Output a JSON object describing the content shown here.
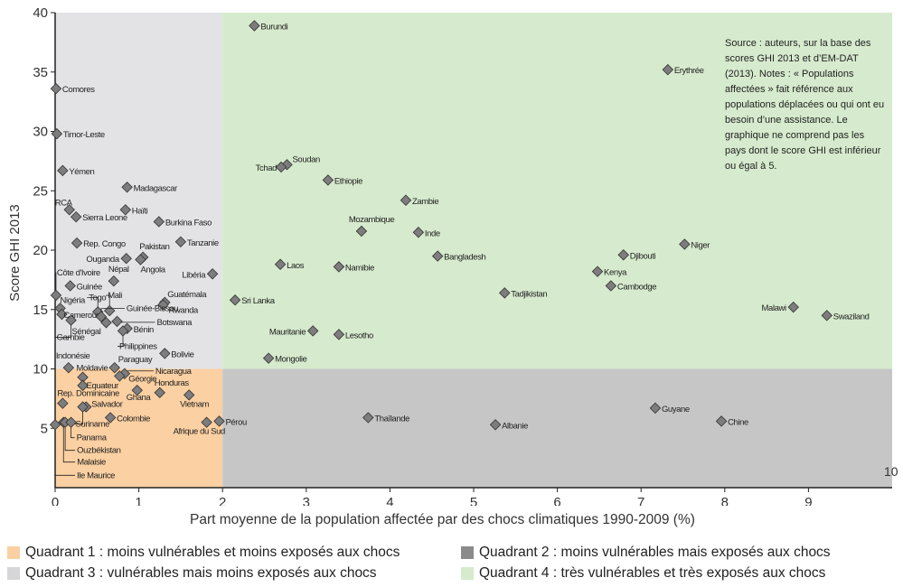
{
  "chart_data": {
    "type": "scatter",
    "xlabel": "Part moyenne de la population affectée par des chocs climatiques 1990-2009 (%)",
    "ylabel": "Score GHI 2013",
    "xlim": [
      0,
      10
    ],
    "ylim": [
      0,
      40
    ],
    "x_ticks": [
      0,
      1,
      2,
      3,
      4,
      5,
      6,
      7,
      8,
      9
    ],
    "y_ticks": [
      5,
      10,
      15,
      20,
      25,
      30,
      35,
      40
    ],
    "corner_tick": "10",
    "quadrant_split": {
      "x": 2,
      "y": 10
    },
    "colors": {
      "q1": "#fbd0a2",
      "q2": "#c6c6c6",
      "q3": "#e3e3e5",
      "q4": "#d6eacd",
      "marker": "#7d7d7d",
      "marker_stroke": "#333333"
    },
    "points": [
      {
        "name": "Burundi",
        "x": 2.38,
        "y": 38.9
      },
      {
        "name": "Erythrée",
        "x": 7.32,
        "y": 35.2
      },
      {
        "name": "Comores",
        "x": 0.01,
        "y": 33.6
      },
      {
        "name": "Timor-Leste",
        "x": 0.02,
        "y": 29.8
      },
      {
        "name": "Yémen",
        "x": 0.09,
        "y": 26.7
      },
      {
        "name": "Soudan",
        "x": 2.77,
        "y": 27.2
      },
      {
        "name": "Tchad",
        "x": 2.7,
        "y": 27.0
      },
      {
        "name": "Madagascar",
        "x": 0.86,
        "y": 25.3
      },
      {
        "name": "Ethiopie",
        "x": 3.26,
        "y": 25.9
      },
      {
        "name": "Zambie",
        "x": 4.19,
        "y": 24.2
      },
      {
        "name": "RCA",
        "x": 0.17,
        "y": 23.4
      },
      {
        "name": "Sierra Leone",
        "x": 0.25,
        "y": 22.8
      },
      {
        "name": "Haïti",
        "x": 0.84,
        "y": 23.4
      },
      {
        "name": "Burkina Faso",
        "x": 1.24,
        "y": 22.4
      },
      {
        "name": "Mozambique",
        "x": 3.66,
        "y": 21.6
      },
      {
        "name": "Inde",
        "x": 4.34,
        "y": 21.5
      },
      {
        "name": "Rep. Congo",
        "x": 0.26,
        "y": 20.6
      },
      {
        "name": "Tanzanie",
        "x": 1.5,
        "y": 20.7
      },
      {
        "name": "Niger",
        "x": 7.52,
        "y": 20.5
      },
      {
        "name": "Pakistan",
        "x": 1.05,
        "y": 19.4
      },
      {
        "name": "Angola",
        "x": 1.02,
        "y": 19.2
      },
      {
        "name": "Ouganda",
        "x": 0.85,
        "y": 19.3
      },
      {
        "name": "Bangladesh",
        "x": 4.57,
        "y": 19.5
      },
      {
        "name": "Djibouti",
        "x": 6.79,
        "y": 19.6
      },
      {
        "name": "Laos",
        "x": 2.69,
        "y": 18.8
      },
      {
        "name": "Namibie",
        "x": 3.39,
        "y": 18.6
      },
      {
        "name": "Libéria",
        "x": 1.88,
        "y": 18.0
      },
      {
        "name": "Kenya",
        "x": 6.48,
        "y": 18.2
      },
      {
        "name": "Népal",
        "x": 0.7,
        "y": 17.4
      },
      {
        "name": "Guinée",
        "x": 0.18,
        "y": 17.0
      },
      {
        "name": "Cambodge",
        "x": 6.64,
        "y": 17.0
      },
      {
        "name": "Côte d'Ivoire",
        "x": 0.01,
        "y": 16.2
      },
      {
        "name": "Tadjikistan",
        "x": 5.37,
        "y": 16.4
      },
      {
        "name": "Sri Lanka",
        "x": 2.15,
        "y": 15.8
      },
      {
        "name": "Guatémala",
        "x": 1.31,
        "y": 15.6
      },
      {
        "name": "Rwanda",
        "x": 1.29,
        "y": 15.4
      },
      {
        "name": "Nigéria",
        "x": 0.06,
        "y": 15.1
      },
      {
        "name": "Togo",
        "x": 0.51,
        "y": 14.8
      },
      {
        "name": "Mali",
        "x": 0.65,
        "y": 14.9
      },
      {
        "name": "Malawi",
        "x": 8.82,
        "y": 15.2
      },
      {
        "name": "Cameroun",
        "x": 0.08,
        "y": 14.6
      },
      {
        "name": "Guinée-Bissau",
        "x": 0.55,
        "y": 14.4
      },
      {
        "name": "Swaziland",
        "x": 9.22,
        "y": 14.5
      },
      {
        "name": "Gambie",
        "x": 0.19,
        "y": 14.1
      },
      {
        "name": "Sénégal",
        "x": 0.61,
        "y": 13.9
      },
      {
        "name": "Botswana",
        "x": 0.74,
        "y": 14.0
      },
      {
        "name": "Bénin",
        "x": 0.86,
        "y": 13.4
      },
      {
        "name": "Philippines",
        "x": 0.81,
        "y": 13.2
      },
      {
        "name": "Mauritanie",
        "x": 3.08,
        "y": 13.2
      },
      {
        "name": "Lesotho",
        "x": 3.39,
        "y": 12.9
      },
      {
        "name": "Bolivie",
        "x": 1.31,
        "y": 11.3
      },
      {
        "name": "Mongolie",
        "x": 2.55,
        "y": 10.9
      },
      {
        "name": "Paraguay",
        "x": 0.71,
        "y": 10.1
      },
      {
        "name": "Indonésie",
        "x": 0.16,
        "y": 10.1
      },
      {
        "name": "Nicaragua",
        "x": 0.83,
        "y": 9.6
      },
      {
        "name": "Géorgie",
        "x": 0.77,
        "y": 9.4
      },
      {
        "name": "Moldavie",
        "x": 0.33,
        "y": 9.3
      },
      {
        "name": "Equateur",
        "x": 0.33,
        "y": 8.6
      },
      {
        "name": "Ghana",
        "x": 0.98,
        "y": 8.2
      },
      {
        "name": "Honduras",
        "x": 1.25,
        "y": 8.0
      },
      {
        "name": "Vietnam",
        "x": 1.6,
        "y": 7.8
      },
      {
        "name": "Rep. Dominicaine",
        "x": 0.09,
        "y": 7.1
      },
      {
        "name": "Salvador",
        "x": 0.37,
        "y": 6.8
      },
      {
        "name": "Suriname",
        "x": 0.33,
        "y": 6.8
      },
      {
        "name": "Colombie",
        "x": 0.66,
        "y": 5.9
      },
      {
        "name": "Afrique du Sud",
        "x": 1.81,
        "y": 5.5
      },
      {
        "name": "Pérou",
        "x": 1.96,
        "y": 5.6
      },
      {
        "name": "Ile Maurice",
        "x": 0.0,
        "y": 5.3
      },
      {
        "name": "Malaisie",
        "x": 0.1,
        "y": 5.5
      },
      {
        "name": "Ouzbékistan",
        "x": 0.12,
        "y": 5.5
      },
      {
        "name": "Panama",
        "x": 0.19,
        "y": 5.5
      },
      {
        "name": "Thaïlande",
        "x": 3.74,
        "y": 5.9
      },
      {
        "name": "Albanie",
        "x": 5.26,
        "y": 5.3
      },
      {
        "name": "Guyane",
        "x": 7.17,
        "y": 6.7
      },
      {
        "name": "Chine",
        "x": 7.96,
        "y": 5.6
      }
    ]
  },
  "note": "Source : auteurs, sur la base des scores GHI 2013 et d’EM-DAT (2013). Notes : « Populations affectées » fait référence aux populations déplacées ou qui ont eu besoin d’une assistance. Le graphique ne comprend pas les pays dont le score GHI est inférieur ou égal à 5.",
  "legend": {
    "q1": "Quadrant 1 : moins vulnérables et moins exposés aux chocs",
    "q2": "Quadrant 2 : moins vulnérables mais exposés aux chocs",
    "q3": "Quadrant 3 : vulnérables mais moins exposés aux chocs",
    "q4": "Quadrant 4 : très vulnérables et très exposés aux chocs"
  }
}
